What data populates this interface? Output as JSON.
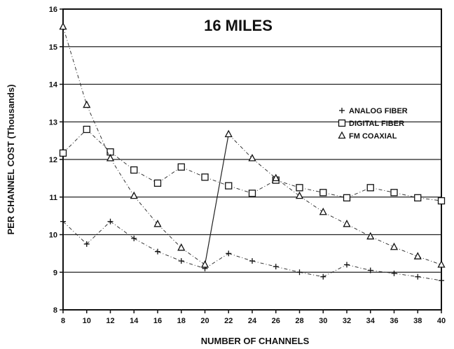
{
  "chart_data": {
    "type": "line",
    "title": "16 MILES",
    "xlabel": "NUMBER OF CHANNELS",
    "ylabel": "PER CHANNEL COST (Thousands)",
    "xlim": [
      8,
      40
    ],
    "ylim": [
      8,
      16
    ],
    "xticks": [
      8,
      10,
      12,
      14,
      16,
      18,
      20,
      22,
      24,
      26,
      28,
      30,
      32,
      34,
      36,
      38,
      40
    ],
    "yticks": [
      8,
      9,
      10,
      11,
      12,
      13,
      14,
      15,
      16
    ],
    "grid": "horizontal",
    "legend_position": "right",
    "series": [
      {
        "name": "ANALOG FIBER",
        "marker": "plus",
        "x": [
          8,
          10,
          12,
          14,
          16,
          18,
          20,
          22,
          24,
          26,
          28,
          30,
          32,
          34,
          36,
          38,
          40
        ],
        "y": [
          10.35,
          9.75,
          10.35,
          9.9,
          9.55,
          9.3,
          9.1,
          9.5,
          9.3,
          9.15,
          9.0,
          8.88,
          9.2,
          9.05,
          8.97,
          8.88,
          8.78
        ]
      },
      {
        "name": "DIGITAL FIBER",
        "marker": "square",
        "x": [
          8,
          10,
          12,
          14,
          16,
          18,
          20,
          22,
          24,
          26,
          28,
          30,
          32,
          34,
          36,
          38,
          40
        ],
        "y": [
          12.17,
          12.8,
          12.2,
          11.72,
          11.37,
          11.8,
          11.53,
          11.3,
          11.1,
          11.45,
          11.25,
          11.12,
          10.98,
          11.25,
          11.12,
          10.98,
          10.9
        ]
      },
      {
        "name": "FM COAXIAL",
        "marker": "triangle",
        "x": [
          8,
          10,
          12,
          14,
          16,
          18,
          20,
          22,
          24,
          26,
          28,
          30,
          32,
          34,
          36,
          38,
          40
        ],
        "y": [
          15.53,
          13.45,
          12.03,
          11.03,
          10.28,
          9.65,
          9.2,
          12.67,
          12.03,
          11.5,
          11.03,
          10.6,
          10.28,
          9.95,
          9.67,
          9.42,
          9.2
        ]
      }
    ]
  }
}
